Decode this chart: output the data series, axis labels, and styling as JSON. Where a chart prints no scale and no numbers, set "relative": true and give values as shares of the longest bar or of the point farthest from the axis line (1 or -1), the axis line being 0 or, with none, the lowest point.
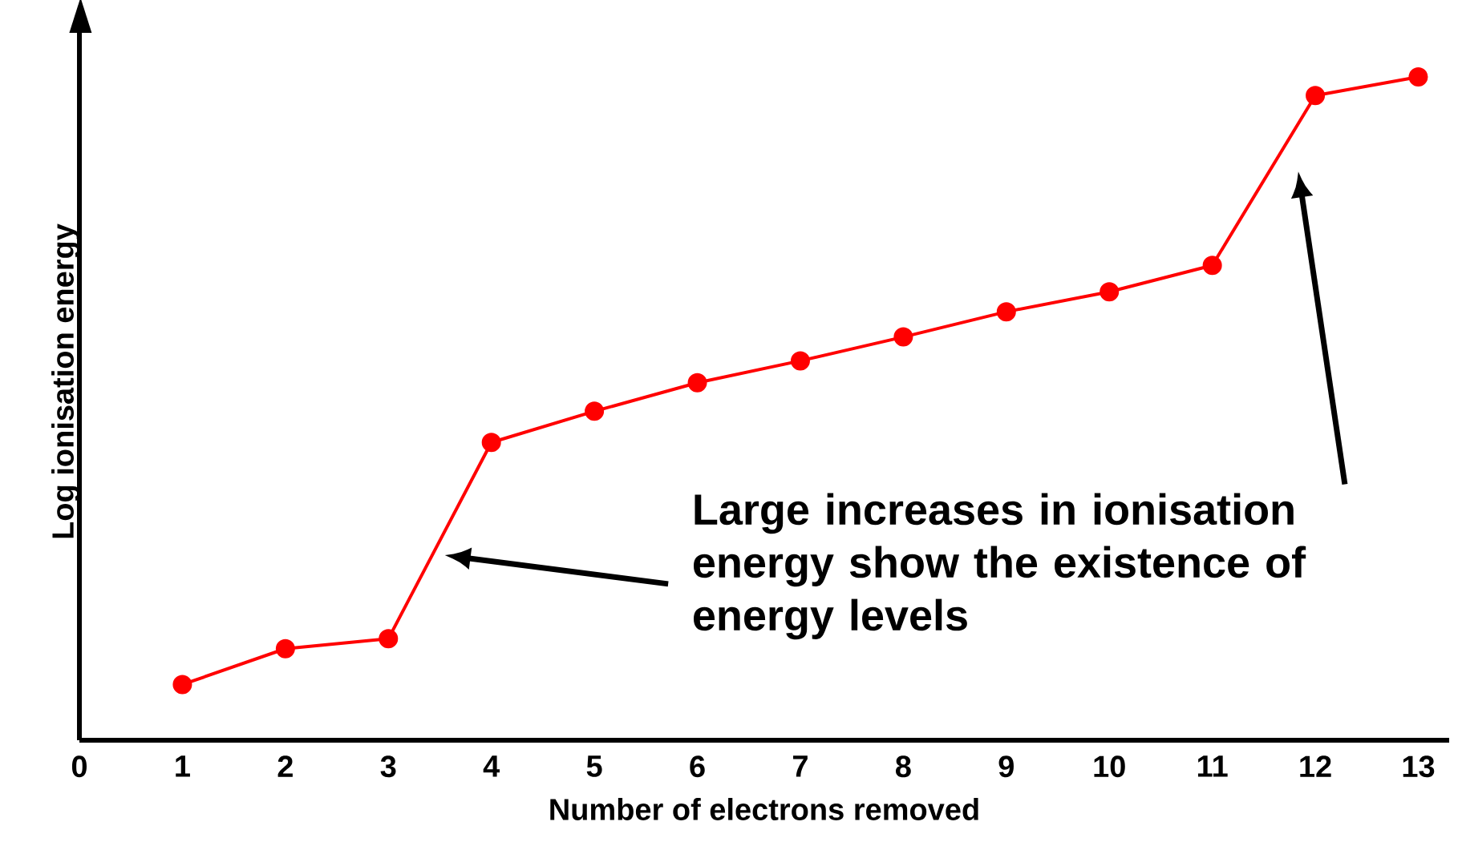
{
  "chart_data": {
    "type": "line",
    "relative": true,
    "xlabel": "Number of electrons removed",
    "ylabel": "Log ionisation energy",
    "x": [
      1,
      2,
      3,
      4,
      5,
      6,
      7,
      8,
      9,
      10,
      11,
      12,
      13
    ],
    "series": [
      {
        "color": "#ff0000",
        "values": [
          0.084,
          0.138,
          0.153,
          0.449,
          0.496,
          0.539,
          0.572,
          0.608,
          0.646,
          0.676,
          0.716,
          0.972,
          1.0
        ]
      }
    ],
    "xlim": [
      0,
      13.3
    ],
    "xticks": [
      0,
      1,
      2,
      3,
      4,
      5,
      6,
      7,
      8,
      9,
      10,
      11,
      12,
      13
    ],
    "marker": "circle",
    "line_style": "solid",
    "annotations": [
      "Large increases in ionisation energy show the existence of energy levels"
    ]
  }
}
